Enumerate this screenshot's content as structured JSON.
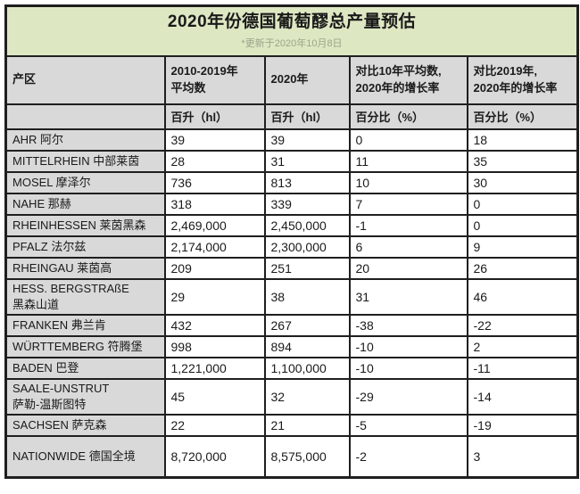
{
  "page": {
    "title": "2020年份德国葡萄醪总产量预估",
    "subtitle": "*更新于2020年10月8日"
  },
  "colors": {
    "title-bg": "#dde8c3",
    "head-bg": "#d9d9d9",
    "border": "#1f1f1f",
    "text": "#1a1a1a",
    "subtitle": "#9aa489"
  },
  "table": {
    "columns": [
      "产区",
      "2010-2019年\n平均数",
      "2020年",
      "对比10年平均数,\n2020年的增长率",
      "对比2019年,\n2020年的增长率"
    ],
    "units": [
      "",
      "百升（hl）",
      "百升（hl）",
      "百分比（%）",
      "百分比（%）"
    ],
    "rows": [
      {
        "region": "AHR 阿尔",
        "values": [
          "39",
          "39",
          "0",
          "18"
        ]
      },
      {
        "region": "MITTELRHEIN 中部莱茵",
        "values": [
          "28",
          "31",
          "11",
          "35"
        ]
      },
      {
        "region": "MOSEL 摩泽尔",
        "values": [
          "736",
          "813",
          "10",
          "30"
        ]
      },
      {
        "region": "NAHE 那赫",
        "values": [
          "318",
          "339",
          "7",
          "0"
        ]
      },
      {
        "region": "RHEINHESSEN 莱茵黑森",
        "values": [
          "2,469,000",
          "2,450,000",
          "-1",
          "0"
        ]
      },
      {
        "region": "PFALZ 法尔兹",
        "values": [
          "2,174,000",
          "2,300,000",
          "6",
          "9"
        ]
      },
      {
        "region": "RHEINGAU 莱茵高",
        "values": [
          "209",
          "251",
          "20",
          "26"
        ]
      },
      {
        "region": "HESS. BERGSTRAßE\n黑森山道",
        "values": [
          "29",
          "38",
          "31",
          "46"
        ]
      },
      {
        "region": "FRANKEN 弗兰肯",
        "values": [
          "432",
          "267",
          "-38",
          "-22"
        ]
      },
      {
        "region": "WÜRTTEMBERG 符腾堡",
        "values": [
          "998",
          "894",
          "-10",
          "2"
        ]
      },
      {
        "region": "BADEN 巴登",
        "values": [
          "1,221,000",
          "1,100,000",
          "-10",
          "-11"
        ]
      },
      {
        "region": "SAALE-UNSTRUT\n萨勒-温斯图特",
        "values": [
          "45",
          "32",
          "-29",
          "-14"
        ]
      },
      {
        "region": "SACHSEN 萨克森",
        "values": [
          "22",
          "21",
          "-5",
          "-19"
        ]
      },
      {
        "region": "NATIONWIDE 德国全境",
        "values": [
          "8,720,000",
          "8,575,000",
          "-2",
          "3"
        ]
      }
    ]
  }
}
